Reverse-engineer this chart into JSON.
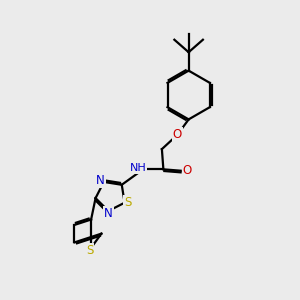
{
  "bg_color": "#ebebeb",
  "atom_colors": {
    "C": "#000000",
    "N": "#0000cc",
    "O": "#cc0000",
    "S": "#bbaa00",
    "H": "#444444"
  },
  "bond_color": "#000000",
  "linewidth": 1.6
}
